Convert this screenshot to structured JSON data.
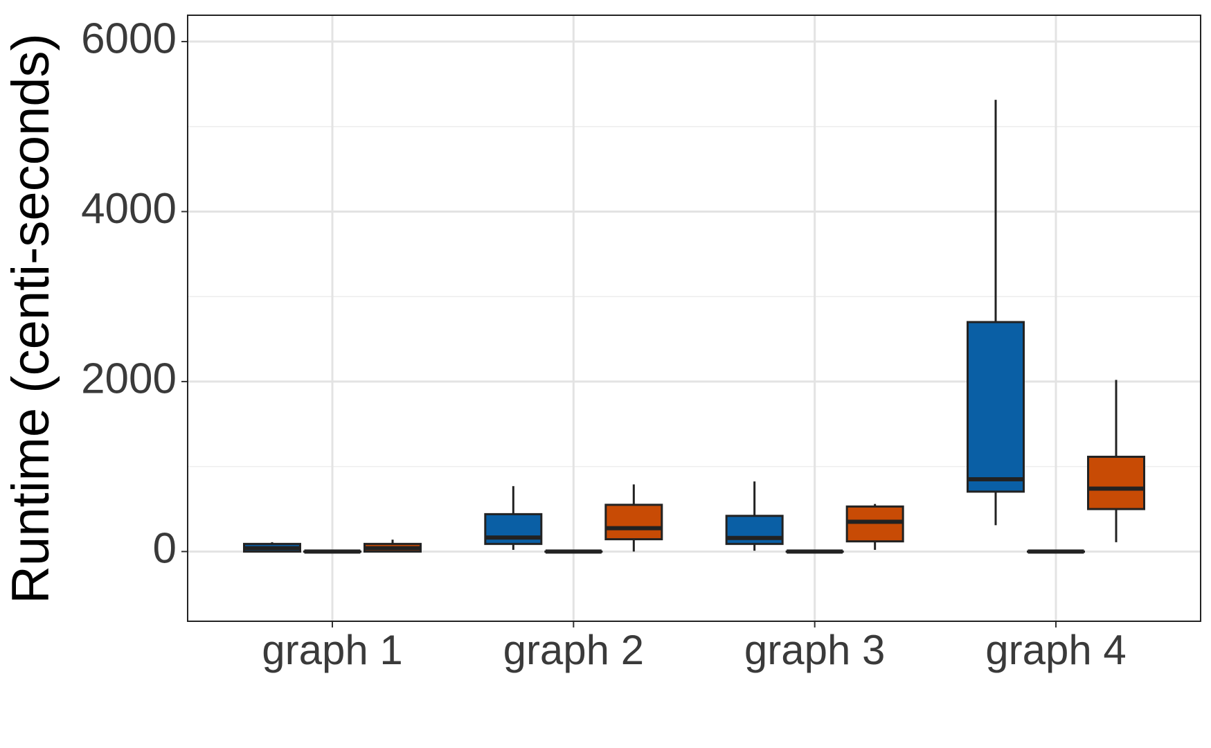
{
  "chart_data": {
    "type": "box",
    "y_label": "Runtime (centi-seconds)",
    "categories": [
      "graph 1",
      "graph 2",
      "graph 3",
      "graph 4"
    ],
    "ylim": [
      -820,
      6310
    ],
    "yticks": [
      0,
      2000,
      4000,
      6000
    ],
    "yminor": [
      1000,
      3000,
      5000
    ],
    "grid": true,
    "series": [
      {
        "color": "#0a5fa5",
        "boxes": [
          {
            "min": 0,
            "q1": 0,
            "median": 40,
            "q3": 90,
            "max": 110
          },
          {
            "min": 20,
            "q1": 90,
            "median": 165,
            "q3": 440,
            "max": 770
          },
          {
            "min": 10,
            "q1": 90,
            "median": 160,
            "q3": 420,
            "max": 825
          },
          {
            "min": 310,
            "q1": 705,
            "median": 850,
            "q3": 2700,
            "max": 5315
          }
        ]
      },
      {
        "color": "#222222",
        "boxes": [
          {
            "min": 0,
            "q1": 0,
            "median": 0,
            "q3": 0,
            "max": 0
          },
          {
            "min": 0,
            "q1": 0,
            "median": 0,
            "q3": 0,
            "max": 0
          },
          {
            "min": 0,
            "q1": 0,
            "median": 0,
            "q3": 0,
            "max": 0
          },
          {
            "min": 0,
            "q1": 0,
            "median": 0,
            "q3": 0,
            "max": 0
          }
        ]
      },
      {
        "color": "#c84b05",
        "boxes": [
          {
            "min": 0,
            "q1": 0,
            "median": 40,
            "q3": 90,
            "max": 140
          },
          {
            "min": 0,
            "q1": 145,
            "median": 275,
            "q3": 550,
            "max": 790
          },
          {
            "min": 20,
            "q1": 120,
            "median": 350,
            "q3": 530,
            "max": 560
          },
          {
            "min": 110,
            "q1": 500,
            "median": 740,
            "q3": 1115,
            "max": 2020
          }
        ]
      }
    ]
  }
}
